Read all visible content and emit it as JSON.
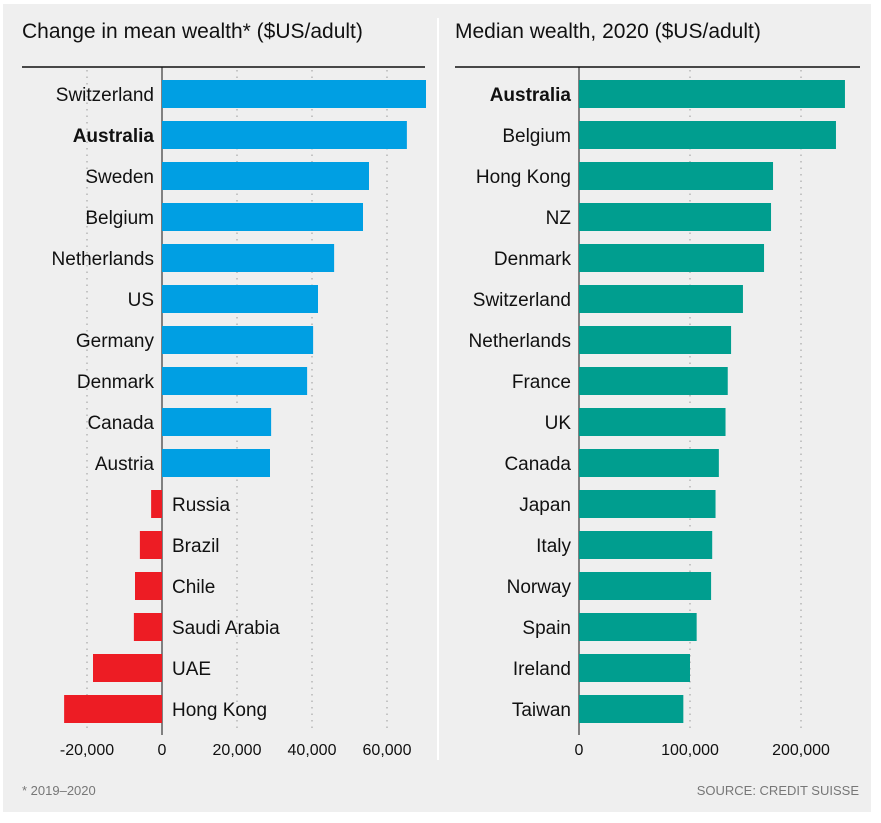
{
  "chart_data": [
    {
      "type": "bar",
      "orientation": "horizontal",
      "title": "Change in mean wealth* ($US/adult)",
      "categories": [
        "Switzerland",
        "Australia",
        "Sweden",
        "Belgium",
        "Netherlands",
        "US",
        "Germany",
        "Denmark",
        "Canada",
        "Austria",
        "Russia",
        "Brazil",
        "Chile",
        "Saudi Arabia",
        "UAE",
        "Hong Kong"
      ],
      "values": [
        70400,
        65300,
        55200,
        53600,
        45900,
        41600,
        40300,
        38700,
        29100,
        28800,
        -2900,
        -5900,
        -7200,
        -7500,
        -18400,
        -26100
      ],
      "highlight": "Australia",
      "xlim": [
        -28000,
        70500
      ],
      "ticks": [
        -20000,
        0,
        20000,
        40000,
        60000
      ],
      "tick_labels": [
        "-20,000",
        "0",
        "20,000",
        "40,000",
        "60,000"
      ],
      "grid": "dotted vertical",
      "colors": {
        "positive": "#009fe3",
        "negative": "#ed1c24"
      }
    },
    {
      "type": "bar",
      "orientation": "horizontal",
      "title": "Median wealth, 2020 ($US/adult)",
      "categories": [
        "Australia",
        "Belgium",
        "Hong Kong",
        "NZ",
        "Denmark",
        "Switzerland",
        "Netherlands",
        "France",
        "UK",
        "Canada",
        "Japan",
        "Italy",
        "Norway",
        "Spain",
        "Ireland",
        "Taiwan"
      ],
      "values": [
        239600,
        231500,
        174800,
        173000,
        166700,
        147700,
        137000,
        134000,
        132000,
        126000,
        123000,
        120000,
        119000,
        106000,
        100000,
        94000
      ],
      "highlight": "Australia",
      "xlim": [
        0,
        255000
      ],
      "ticks": [
        0,
        100000,
        200000
      ],
      "tick_labels": [
        "0",
        "100,000",
        "200,000"
      ],
      "grid": "dotted vertical",
      "colors": {
        "bar": "#009e8f"
      }
    }
  ],
  "footnote": "* 2019–2020",
  "source": "SOURCE: CREDIT SUISSE"
}
